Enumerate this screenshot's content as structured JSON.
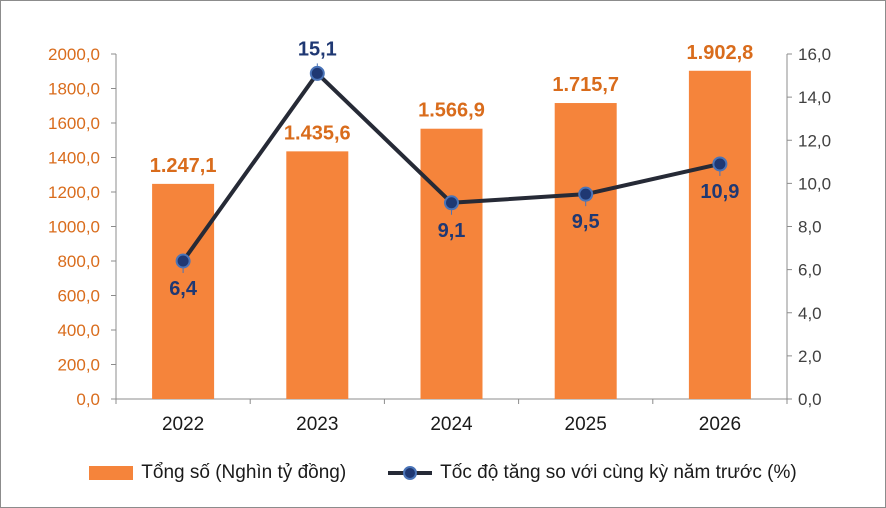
{
  "chart_data": {
    "type": "bar+line",
    "categories": [
      "2022",
      "2023",
      "2024",
      "2025",
      "2026"
    ],
    "series": [
      {
        "name": "Tổng số (Nghìn tỷ đồng)",
        "type": "bar",
        "axis": "left",
        "values": [
          1247.1,
          1435.6,
          1566.9,
          1715.7,
          1902.8
        ],
        "labels": [
          "1.247,1",
          "1.435,6",
          "1.566,9",
          "1.715,7",
          "1.902,8"
        ],
        "color": "#f5843b",
        "label_color": "#d96c1c"
      },
      {
        "name": "Tốc độ tăng so với cùng kỳ năm trước (%)",
        "type": "line",
        "axis": "right",
        "values": [
          6.4,
          15.1,
          9.1,
          9.5,
          10.9
        ],
        "labels": [
          "6,4",
          "15,1",
          "9,1",
          "9,5",
          "10,9"
        ],
        "color": "#262a36",
        "marker_color": "#1f3873",
        "label_color": "#1f3873"
      }
    ],
    "y_left": {
      "ylim": [
        0,
        2000
      ],
      "ticks": [
        "0,0",
        "200,0",
        "400,0",
        "600,0",
        "800,0",
        "1000,0",
        "1200,0",
        "1400,0",
        "1600,0",
        "1800,0",
        "2000,0"
      ],
      "tick_color": "#d96c1c"
    },
    "y_right": {
      "ylim": [
        0,
        16
      ],
      "ticks": [
        "0,0",
        "2,0",
        "4,0",
        "6,0",
        "8,0",
        "10,0",
        "12,0",
        "14,0",
        "16,0"
      ],
      "tick_color": "#404040"
    },
    "grid": false,
    "legend_position": "bottom"
  }
}
